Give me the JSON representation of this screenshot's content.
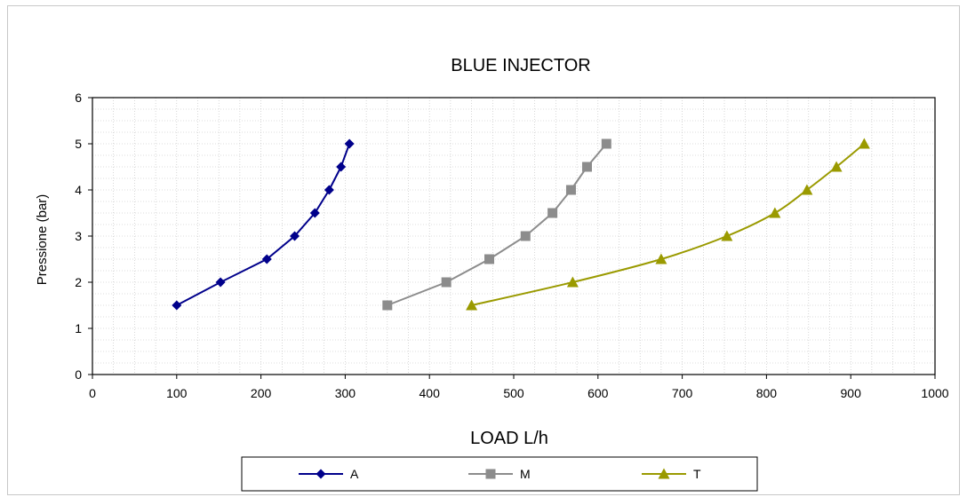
{
  "chart_data": {
    "type": "line",
    "title": "BLUE INJECTOR",
    "xlabel": "LOAD L/h",
    "ylabel": "Pressione (bar)",
    "xlim": [
      0,
      1000
    ],
    "ylim": [
      0,
      6
    ],
    "xticks": [
      0,
      100,
      200,
      300,
      400,
      500,
      600,
      700,
      800,
      900,
      1000
    ],
    "yticks": [
      0,
      1,
      2,
      3,
      4,
      5,
      6
    ],
    "grid": true,
    "legend_position": "bottom",
    "series": [
      {
        "name": "A",
        "color": "#00008B",
        "marker": "diamond",
        "points": [
          [
            100,
            1.5
          ],
          [
            152,
            2.0
          ],
          [
            207,
            2.5
          ],
          [
            240,
            3.0
          ],
          [
            264,
            3.5
          ],
          [
            281,
            4.0
          ],
          [
            295,
            4.5
          ],
          [
            305,
            5.0
          ]
        ]
      },
      {
        "name": "M",
        "color": "#8C8C8C",
        "marker": "square",
        "points": [
          [
            350,
            1.5
          ],
          [
            420,
            2.0
          ],
          [
            471,
            2.5
          ],
          [
            514,
            3.0
          ],
          [
            546,
            3.5
          ],
          [
            568,
            4.0
          ],
          [
            587,
            4.5
          ],
          [
            610,
            5.0
          ]
        ]
      },
      {
        "name": "T",
        "color": "#9A9A00",
        "marker": "triangle",
        "points": [
          [
            450,
            1.5
          ],
          [
            570,
            2.0
          ],
          [
            675,
            2.5
          ],
          [
            753,
            3.0
          ],
          [
            810,
            3.5
          ],
          [
            848,
            4.0
          ],
          [
            883,
            4.5
          ],
          [
            916,
            5.0
          ]
        ]
      }
    ]
  }
}
